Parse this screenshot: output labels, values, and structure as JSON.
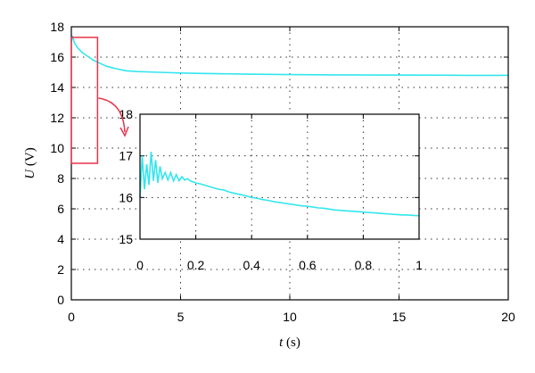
{
  "chart_data": [
    {
      "type": "line",
      "role": "main",
      "title": "",
      "xlabel_var": "t",
      "xlabel_unit": " (s)",
      "ylabel_var": "U",
      "ylabel_unit": " (V)",
      "xlim": [
        0,
        20
      ],
      "ylim": [
        0,
        18
      ],
      "xticks": [
        0,
        5,
        10,
        15,
        20
      ],
      "yticks": [
        0,
        2,
        4,
        6,
        8,
        10,
        12,
        14,
        16,
        18
      ],
      "grid": true,
      "series_color": "#33e6ee",
      "series": [
        {
          "x": [
            0,
            0.05,
            0.15,
            0.3,
            0.5,
            0.8,
            1.0,
            1.3,
            1.6,
            2.0,
            2.5,
            3.0,
            4.0,
            5.0,
            6.0,
            7.0,
            8.0,
            10.0,
            12.0,
            14.0,
            16.0,
            18.0,
            20.0
          ],
          "y": [
            17.0,
            17.4,
            16.9,
            16.6,
            16.3,
            16.0,
            15.8,
            15.6,
            15.4,
            15.25,
            15.1,
            15.05,
            15.0,
            14.95,
            14.92,
            14.9,
            14.88,
            14.85,
            14.83,
            14.82,
            14.81,
            14.8,
            14.8
          ]
        }
      ],
      "highlight_box": {
        "x": [
          0,
          1.2
        ],
        "y": [
          9.0,
          17.3
        ],
        "color": "#e8334a"
      }
    },
    {
      "type": "line",
      "role": "inset",
      "title": "",
      "xlim": [
        0,
        1
      ],
      "ylim": [
        15,
        18
      ],
      "xticks": [
        0,
        0.2,
        0.4,
        0.6,
        0.8,
        1
      ],
      "yticks": [
        15,
        16,
        17,
        18
      ],
      "grid": true,
      "series_color": "#33e6ee",
      "series": [
        {
          "x": [
            0,
            0.008,
            0.016,
            0.024,
            0.032,
            0.04,
            0.048,
            0.056,
            0.064,
            0.072,
            0.08,
            0.09,
            0.1,
            0.11,
            0.12,
            0.13,
            0.14,
            0.15,
            0.16,
            0.17,
            0.18,
            0.2,
            0.22,
            0.24,
            0.26,
            0.28,
            0.3,
            0.32,
            0.34,
            0.36,
            0.38,
            0.4,
            0.42,
            0.44,
            0.46,
            0.48,
            0.5,
            0.52,
            0.54,
            0.56,
            0.58,
            0.6,
            0.62,
            0.64,
            0.66,
            0.68,
            0.7,
            0.72,
            0.74,
            0.76,
            0.78,
            0.8,
            0.82,
            0.84,
            0.86,
            0.88,
            0.9,
            0.92,
            0.94,
            0.96,
            0.98,
            1.0
          ],
          "y": [
            16.0,
            17.0,
            16.2,
            16.8,
            16.3,
            17.1,
            16.4,
            16.9,
            16.35,
            16.75,
            16.45,
            16.6,
            16.42,
            16.6,
            16.4,
            16.55,
            16.4,
            16.5,
            16.42,
            16.45,
            16.4,
            16.35,
            16.32,
            16.28,
            16.24,
            16.2,
            16.18,
            16.13,
            16.1,
            16.07,
            16.04,
            16.0,
            15.98,
            15.95,
            15.93,
            15.9,
            15.88,
            15.86,
            15.84,
            15.82,
            15.8,
            15.79,
            15.77,
            15.75,
            15.74,
            15.72,
            15.7,
            15.69,
            15.68,
            15.67,
            15.66,
            15.65,
            15.64,
            15.63,
            15.62,
            15.61,
            15.6,
            15.59,
            15.58,
            15.58,
            15.57,
            15.56
          ]
        }
      ]
    }
  ]
}
